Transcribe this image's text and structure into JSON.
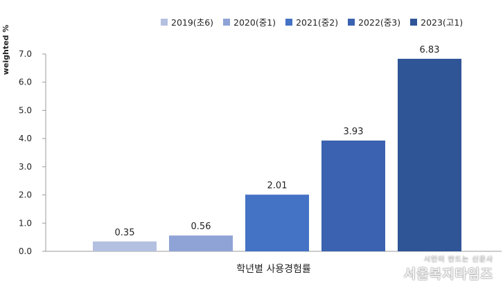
{
  "chart_data": {
    "type": "bar",
    "categories": [
      "2019(초6)",
      "2020(중1)",
      "2021(중2)",
      "2022(중3)",
      "2023(고1)"
    ],
    "values": [
      0.35,
      0.56,
      2.01,
      3.93,
      6.83
    ],
    "data_labels": [
      "0.35",
      "0.56",
      "2.01",
      "3.93",
      "6.83"
    ],
    "colors": [
      "#b4c0e0",
      "#8fa3d6",
      "#4472c4",
      "#3a62b0",
      "#2f5597"
    ],
    "ylabel": "weighted %",
    "xlabel": "학년별 사용경험률",
    "ylim": [
      0,
      7
    ],
    "yticks": [
      "0.0",
      "1.0",
      "2.0",
      "3.0",
      "4.0",
      "5.0",
      "6.0",
      "7.0"
    ],
    "grid": false,
    "legend_position": "top"
  },
  "watermark": {
    "sub": "시민이 만드는 신문사",
    "main": "서울복지타임즈"
  }
}
